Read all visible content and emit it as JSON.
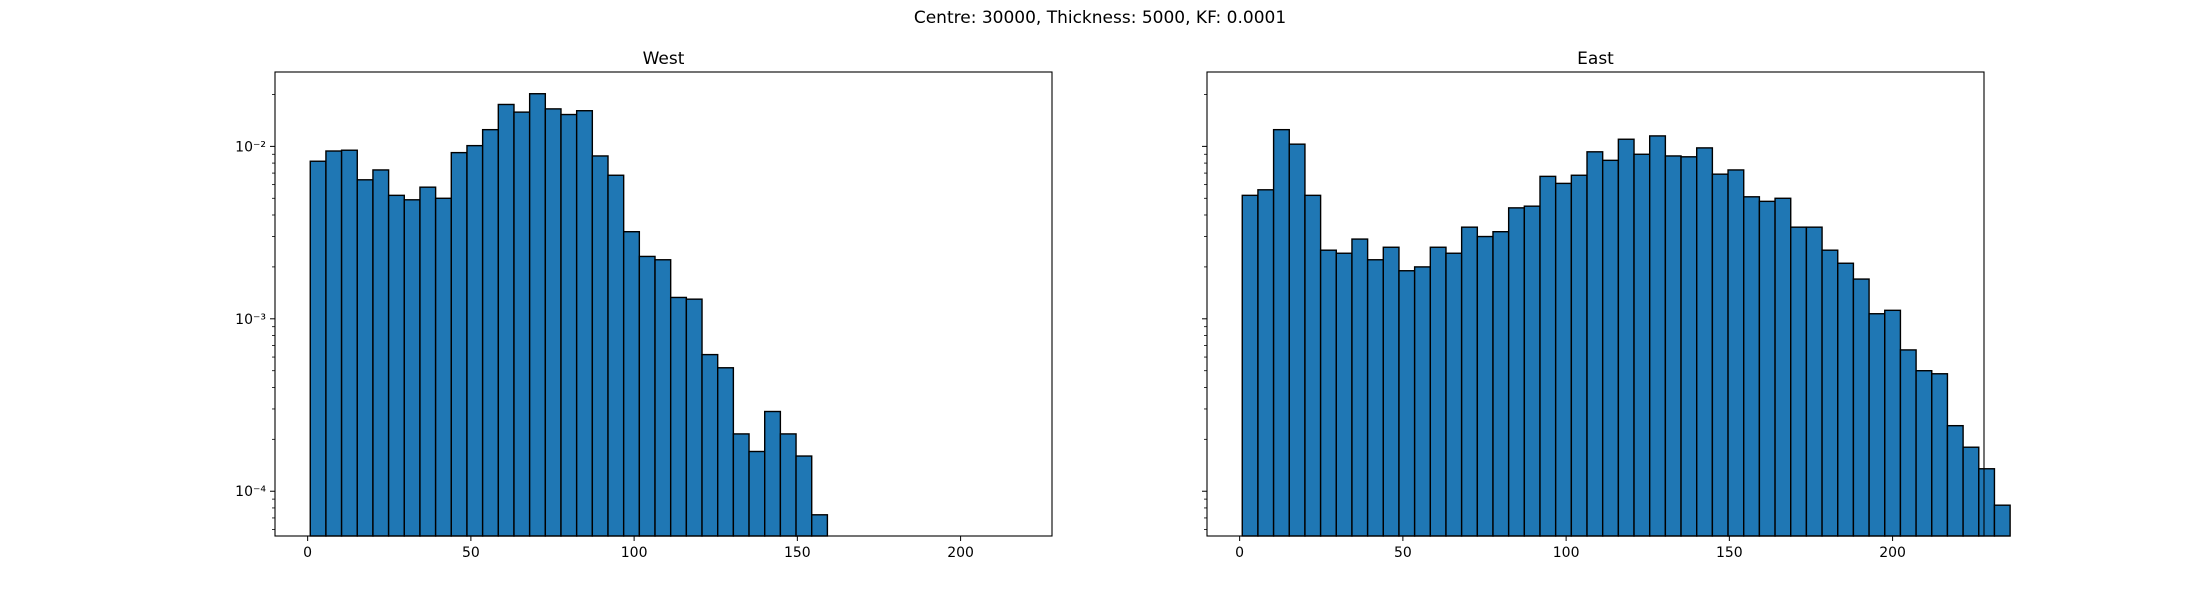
{
  "suptitle": "Centre: 30000, Thickness: 5000, KF: 0.0001",
  "chart_data": [
    {
      "type": "bar",
      "title": "West",
      "xlabel": "",
      "ylabel": "",
      "yscale": "log",
      "xlim": [
        -10,
        228
      ],
      "ylim": [
        5.5e-05,
        0.027
      ],
      "xticks": [
        0,
        50,
        100,
        150,
        200
      ],
      "yticks": [
        0.0001,
        0.001,
        0.01
      ],
      "ytick_labels": [
        "10⁻⁴",
        "10⁻³",
        "10⁻²"
      ],
      "bin_width": 4.8,
      "bin_start": 0.8,
      "color": "#1f77b4",
      "edgecolor": "#000000",
      "values": [
        0.0082,
        0.0094,
        0.0095,
        0.0064,
        0.0073,
        0.0052,
        0.0049,
        0.0058,
        0.005,
        0.0092,
        0.0101,
        0.0125,
        0.0175,
        0.0158,
        0.0202,
        0.0165,
        0.0153,
        0.0161,
        0.0088,
        0.0068,
        0.0032,
        0.0023,
        0.0022,
        0.00133,
        0.0013,
        0.00062,
        0.00052,
        0.000215,
        0.00017,
        0.00029,
        0.000215,
        0.00016,
        7.3e-05
      ]
    },
    {
      "type": "bar",
      "title": "East",
      "xlabel": "",
      "ylabel": "",
      "yscale": "log",
      "xlim": [
        -10,
        228
      ],
      "ylim": [
        5.5e-05,
        0.027
      ],
      "xticks": [
        0,
        50,
        100,
        150,
        200
      ],
      "yticks": [
        0.0001,
        0.001,
        0.01
      ],
      "ytick_labels": [
        "",
        "",
        ""
      ],
      "bin_width": 4.8,
      "bin_start": 0.8,
      "color": "#1f77b4",
      "edgecolor": "#000000",
      "values": [
        0.0052,
        0.0056,
        0.0125,
        0.0103,
        0.0052,
        0.0025,
        0.0024,
        0.0029,
        0.0022,
        0.0026,
        0.0019,
        0.002,
        0.0026,
        0.0024,
        0.0034,
        0.003,
        0.0032,
        0.0044,
        0.0045,
        0.0067,
        0.0061,
        0.0068,
        0.0093,
        0.0083,
        0.011,
        0.009,
        0.0115,
        0.0088,
        0.0087,
        0.0098,
        0.0069,
        0.0073,
        0.0051,
        0.0048,
        0.005,
        0.0034,
        0.0034,
        0.0025,
        0.0021,
        0.0017,
        0.00107,
        0.00112,
        0.00066,
        0.0005,
        0.00048,
        0.00024,
        0.00018,
        0.000135,
        8.3e-05
      ]
    }
  ]
}
